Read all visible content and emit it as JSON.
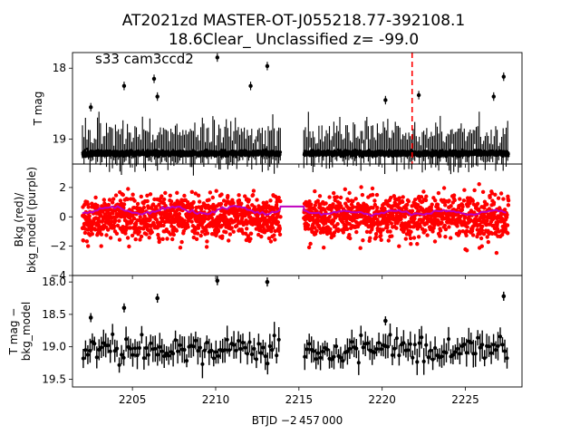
{
  "title": {
    "line1": "AT2021zd  MASTER-OT-J055218.77-392108.1",
    "line2": "18.6Clear_ Unclassified z= -99.0"
  },
  "annotation": "s33 cam3ccd2",
  "xlabel": "BTJD −2 457 000",
  "colors": {
    "data": "#000000",
    "bkg": "#ff0000",
    "bkg_model": "#bf00bf",
    "marker_line": "#ff0000"
  },
  "chart_data": [
    {
      "type": "scatter",
      "name": "top",
      "ylabel": "T mag",
      "xlim": [
        2201.4,
        2228.4
      ],
      "ylim": [
        19.35,
        17.78
      ],
      "y_inverted": true,
      "x_ticks": [
        2205,
        2210,
        2215,
        2220,
        2225
      ],
      "y_ticks": [
        18,
        19
      ],
      "vline_x": 2221.8,
      "segments": [
        [
          2202.0,
          2213.9
        ],
        [
          2215.3,
          2227.6
        ]
      ],
      "baseline": 19.2,
      "outliers": [
        {
          "x": 2210.1,
          "y": 17.85
        },
        {
          "x": 2213.1,
          "y": 17.97
        },
        {
          "x": 2204.5,
          "y": 18.25
        },
        {
          "x": 2206.3,
          "y": 18.15
        },
        {
          "x": 2206.5,
          "y": 18.4
        },
        {
          "x": 2202.5,
          "y": 18.55
        },
        {
          "x": 2212.1,
          "y": 18.25
        },
        {
          "x": 2220.2,
          "y": 18.45
        },
        {
          "x": 2227.3,
          "y": 18.12
        },
        {
          "x": 2226.7,
          "y": 18.4
        },
        {
          "x": 2222.2,
          "y": 18.38
        }
      ]
    },
    {
      "type": "scatter",
      "name": "middle",
      "ylabel": "Bkg (red)/\nbkg_model (purple)",
      "xlim": [
        2201.4,
        2228.4
      ],
      "ylim": [
        -4.0,
        3.6
      ],
      "x_ticks": [
        2205,
        2210,
        2215,
        2220,
        2225
      ],
      "y_ticks": [
        -4,
        -2,
        0,
        2
      ],
      "y_tick_labels": [
        "−4",
        "−2",
        "0",
        "2"
      ],
      "segments": [
        [
          2202.0,
          2213.9
        ],
        [
          2215.3,
          2227.6
        ]
      ],
      "model_gap_level": 0.7
    },
    {
      "type": "scatter",
      "name": "bottom",
      "ylabel": "T mag −\nbkg_model",
      "xlim": [
        2201.4,
        2228.4
      ],
      "ylim": [
        19.62,
        17.9
      ],
      "y_inverted": true,
      "x_ticks": [
        2205,
        2210,
        2215,
        2220,
        2225
      ],
      "x_tick_labels": [
        "2205",
        "2210",
        "2215",
        "2220",
        "2225"
      ],
      "y_ticks": [
        18.0,
        18.5,
        19.0,
        19.5
      ],
      "y_tick_labels": [
        "18.0",
        "18.5",
        "19.0",
        "19.5"
      ],
      "segments": [
        [
          2202.0,
          2213.9
        ],
        [
          2215.3,
          2227.6
        ]
      ],
      "outliers": [
        {
          "x": 2210.1,
          "y": 17.98
        },
        {
          "x": 2213.1,
          "y": 18.0
        },
        {
          "x": 2206.5,
          "y": 18.25
        },
        {
          "x": 2227.3,
          "y": 18.22
        },
        {
          "x": 2204.5,
          "y": 18.4
        },
        {
          "x": 2202.5,
          "y": 18.55
        },
        {
          "x": 2220.2,
          "y": 18.6
        }
      ]
    }
  ]
}
